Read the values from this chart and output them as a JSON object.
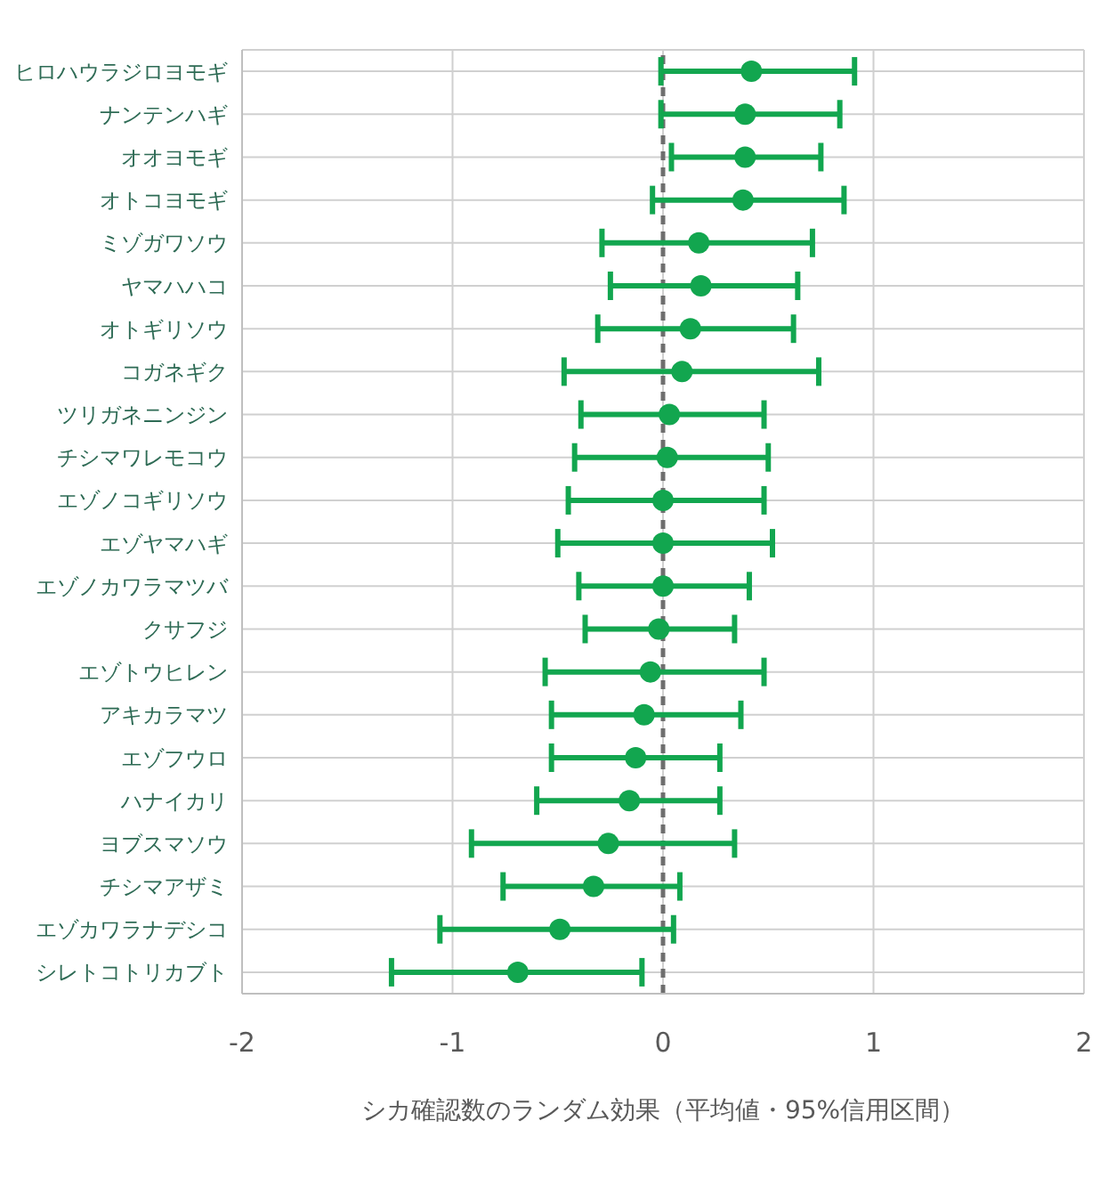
{
  "chart_data": {
    "type": "scatter",
    "xlabel": "シカ確認数のランダム効果（平均値・95%信用区間）",
    "categories": [
      "ヒロハウラジロヨモギ",
      "ナンテンハギ",
      "オオヨモギ",
      "オトコヨモギ",
      "ミゾガワソウ",
      "ヤマハハコ",
      "オトギリソウ",
      "コガネギク",
      "ツリガネニンジン",
      "チシマワレモコウ",
      "エゾノコギリソウ",
      "エゾヤマハギ",
      "エゾノカワラマツバ",
      "クサフジ",
      "エゾトウヒレン",
      "アキカラマツ",
      "エゾフウロ",
      "ハナイカリ",
      "ヨブスマソウ",
      "チシマアザミ",
      "エゾカワラナデシコ",
      "シレトコトリカブト"
    ],
    "series": [
      {
        "color": "#12a64f",
        "values": [
          0.42,
          0.39,
          0.39,
          0.38,
          0.17,
          0.18,
          0.13,
          0.09,
          0.03,
          0.02,
          0.0,
          0.0,
          0.0,
          -0.02,
          -0.06,
          -0.09,
          -0.13,
          -0.16,
          -0.26,
          -0.33,
          -0.49,
          -0.69
        ],
        "errors": [
          [
            -0.01,
            0.91
          ],
          [
            -0.01,
            0.84
          ],
          [
            0.04,
            0.75
          ],
          [
            -0.05,
            0.86
          ],
          [
            -0.29,
            0.71
          ],
          [
            -0.25,
            0.64
          ],
          [
            -0.31,
            0.62
          ],
          [
            -0.47,
            0.74
          ],
          [
            -0.39,
            0.48
          ],
          [
            -0.42,
            0.5
          ],
          [
            -0.45,
            0.48
          ],
          [
            -0.5,
            0.52
          ],
          [
            -0.4,
            0.41
          ],
          [
            -0.37,
            0.34
          ],
          [
            -0.56,
            0.48
          ],
          [
            -0.53,
            0.37
          ],
          [
            -0.53,
            0.27
          ],
          [
            -0.6,
            0.27
          ],
          [
            -0.91,
            0.34
          ],
          [
            -0.76,
            0.08
          ],
          [
            -1.06,
            0.05
          ],
          [
            -1.29,
            -0.1
          ]
        ]
      }
    ],
    "orientation": "horizontal",
    "xlim": [
      -2,
      2
    ],
    "xticks": [
      -2,
      -1,
      0,
      1,
      2
    ],
    "ref_lines": [
      {
        "axis": "x",
        "value": 0,
        "color": "#6e6e6e",
        "line_style": "dashed"
      }
    ],
    "grid": true,
    "marker": "circle"
  }
}
